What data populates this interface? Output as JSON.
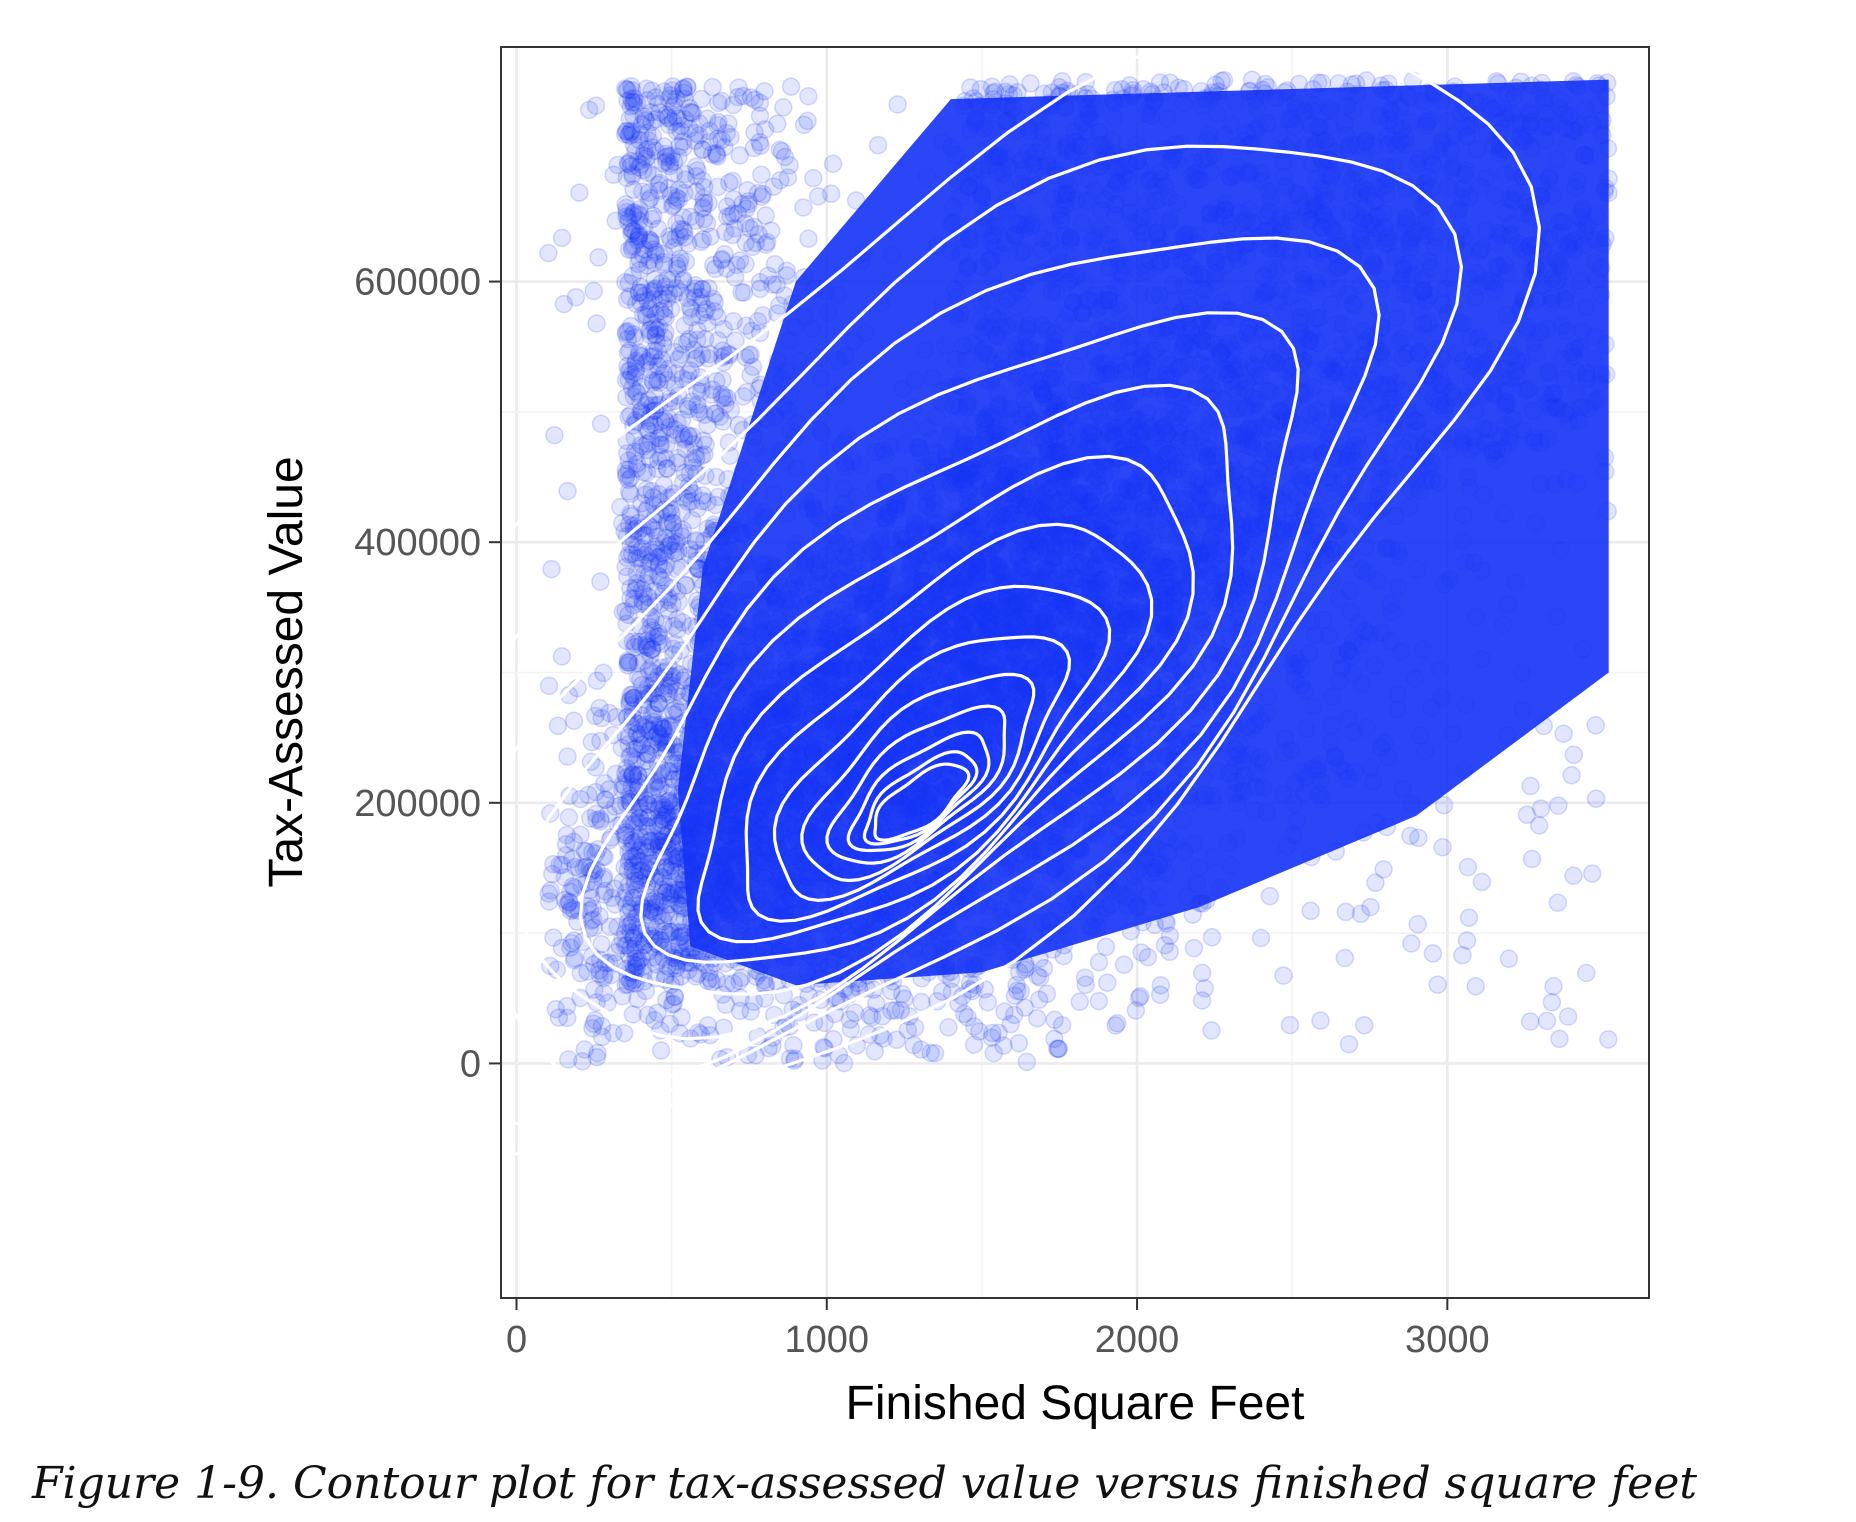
{
  "caption": "Figure 1-9. Contour plot for tax-assessed value versus finished square feet",
  "colors": {
    "points": "#1432f5",
    "contours": "#ffffff",
    "grid": "#ebebeb",
    "panel_border": "#333333"
  },
  "chart_data": {
    "type": "scatter",
    "overlay": "density contours",
    "xlabel": "Finished Square Feet",
    "ylabel": "Tax-Assessed Value",
    "xlim": [
      -50,
      3650
    ],
    "ylim": [
      -180000,
      780000
    ],
    "x_ticks": [
      0,
      1000,
      2000,
      3000
    ],
    "x_tick_labels": [
      "0",
      "1000",
      "2000",
      "3000"
    ],
    "y_ticks": [
      0,
      200000,
      400000,
      600000
    ],
    "y_tick_labels": [
      "0",
      "200000",
      "400000",
      "600000"
    ],
    "grid": true,
    "legend": "none",
    "point_opacity": 0.12,
    "density_mode": {
      "x": 1300,
      "y": 200000
    },
    "approx_point_range": {
      "x": [
        100,
        3520
      ],
      "y": [
        0,
        755000
      ]
    }
  }
}
